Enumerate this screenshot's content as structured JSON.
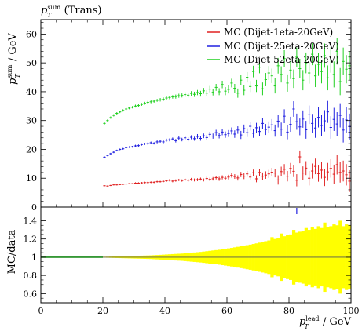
{
  "title": "p_T^sum (Trans)",
  "chart_data": [
    {
      "type": "scatter",
      "panel": "main",
      "ylabel": "p_T^sum / GeV",
      "xlim": [
        0,
        100
      ],
      "ylim": [
        0,
        65
      ],
      "yticks": [
        0,
        10,
        20,
        30,
        40,
        50,
        60
      ],
      "grid": false,
      "legend_position": "top-right",
      "series": [
        {
          "name": "MC (Dijet-1eta-20GeV)",
          "color": "#e02020",
          "x": [
            20.5,
            21.5,
            22.5,
            23.5,
            24.5,
            25.5,
            26.5,
            27.5,
            28.5,
            29.5,
            30.5,
            31.5,
            32.5,
            33.5,
            34.5,
            35.5,
            36.5,
            37.5,
            38.5,
            39.5,
            40.5,
            41.5,
            42.5,
            43.5,
            44.5,
            45.5,
            46.5,
            47.5,
            48.5,
            49.5,
            50.5,
            51.5,
            52.5,
            53.5,
            54.5,
            55.5,
            56.5,
            57.5,
            58.5,
            59.5,
            60.5,
            61.5,
            62.5,
            63.5,
            64.5,
            65.5,
            66.5,
            67.5,
            68.5,
            69.5,
            70.5,
            71.5,
            72.5,
            73.5,
            74.5,
            75.5,
            76.5,
            77.5,
            78.5,
            79.5,
            80.5,
            81.5,
            82.5,
            83.5,
            84.5,
            85.5,
            86.5,
            87.5,
            88.5,
            89.5,
            90.5,
            91.5,
            92.5,
            93.5,
            94.5,
            95.5,
            96.5,
            97.5,
            98.5,
            99.5
          ],
          "y": [
            7.4,
            7.3,
            7.5,
            7.7,
            7.7,
            7.8,
            7.9,
            8.0,
            8.1,
            8.1,
            8.3,
            8.3,
            8.4,
            8.5,
            8.5,
            8.6,
            8.6,
            8.8,
            8.8,
            8.9,
            9.1,
            9.3,
            9.0,
            9.2,
            9.4,
            9.2,
            9.5,
            9.3,
            9.6,
            9.4,
            9.5,
            9.7,
            9.4,
            9.9,
            9.6,
            9.8,
            10.2,
            9.8,
            10.3,
            10.0,
            10.4,
            11.0,
            10.6,
            10.1,
            11.3,
            10.7,
            11.5,
            10.4,
            11.9,
            9.8,
            12.0,
            10.7,
            11.1,
            11.5,
            12.1,
            11.8,
            9.4,
            12.3,
            13.1,
            10.7,
            13.4,
            12.4,
            9.3,
            17.4,
            11.8,
            13.5,
            10.0,
            12.5,
            14.1,
            11.6,
            12.8,
            10.3,
            12.2,
            13.4,
            11.4,
            14.7,
            12.0,
            12.5,
            11.2,
            9.0
          ],
          "yerr": [
            0.2,
            0.2,
            0.2,
            0.2,
            0.2,
            0.2,
            0.2,
            0.2,
            0.2,
            0.2,
            0.3,
            0.3,
            0.3,
            0.3,
            0.3,
            0.3,
            0.3,
            0.3,
            0.3,
            0.3,
            0.4,
            0.4,
            0.4,
            0.4,
            0.4,
            0.4,
            0.4,
            0.5,
            0.5,
            0.5,
            0.5,
            0.5,
            0.5,
            0.6,
            0.6,
            0.6,
            0.6,
            0.7,
            0.7,
            0.7,
            0.8,
            0.8,
            0.8,
            0.9,
            0.9,
            1.0,
            1.0,
            1.1,
            1.1,
            1.2,
            1.2,
            1.3,
            1.3,
            1.4,
            1.5,
            1.5,
            1.6,
            1.7,
            1.8,
            1.8,
            1.9,
            2.0,
            2.1,
            2.2,
            2.3,
            2.4,
            2.5,
            2.6,
            2.7,
            2.8,
            2.9,
            3.0,
            3.1,
            3.2,
            3.3,
            3.4,
            3.5,
            3.6,
            3.7,
            3.8
          ]
        },
        {
          "name": "MC (Dijet-25eta-20GeV)",
          "color": "#2020e0",
          "x": [
            20.5,
            21.5,
            22.5,
            23.5,
            24.5,
            25.5,
            26.5,
            27.5,
            28.5,
            29.5,
            30.5,
            31.5,
            32.5,
            33.5,
            34.5,
            35.5,
            36.5,
            37.5,
            38.5,
            39.5,
            40.5,
            41.5,
            42.5,
            43.5,
            44.5,
            45.5,
            46.5,
            47.5,
            48.5,
            49.5,
            50.5,
            51.5,
            52.5,
            53.5,
            54.5,
            55.5,
            56.5,
            57.5,
            58.5,
            59.5,
            60.5,
            61.5,
            62.5,
            63.5,
            64.5,
            65.5,
            66.5,
            67.5,
            68.5,
            69.5,
            70.5,
            71.5,
            72.5,
            73.5,
            74.5,
            75.5,
            76.5,
            77.5,
            78.5,
            79.5,
            80.5,
            81.5,
            82.5,
            83.5,
            84.5,
            85.5,
            86.5,
            87.5,
            88.5,
            89.5,
            90.5,
            91.5,
            92.5,
            93.5,
            94.5,
            95.5,
            96.5,
            97.5,
            98.5,
            99.5
          ],
          "y": [
            17.3,
            17.9,
            18.5,
            19.0,
            19.6,
            20.0,
            20.2,
            20.6,
            20.8,
            20.9,
            21.2,
            21.3,
            21.7,
            21.9,
            22.0,
            22.3,
            22.1,
            22.6,
            22.8,
            22.6,
            23.2,
            23.3,
            23.6,
            23.0,
            23.9,
            23.4,
            24.0,
            23.5,
            24.2,
            23.7,
            24.5,
            23.8,
            24.7,
            24.1,
            25.2,
            24.6,
            25.8,
            24.8,
            26.0,
            25.1,
            25.5,
            26.4,
            25.3,
            26.7,
            25.0,
            27.2,
            25.8,
            28.0,
            25.6,
            27.5,
            26.2,
            29.0,
            26.9,
            27.7,
            28.5,
            26.5,
            29.8,
            27.0,
            31.5,
            26.0,
            28.7,
            34.0,
            29.6,
            27.8,
            30.5,
            26.8,
            32.0,
            29.0,
            27.4,
            31.1,
            28.3,
            29.9,
            33.0,
            27.6,
            30.4,
            28.8,
            31.8,
            26.7,
            30.2,
            27.9
          ],
          "yerr": [
            0.3,
            0.3,
            0.3,
            0.3,
            0.3,
            0.3,
            0.3,
            0.3,
            0.3,
            0.3,
            0.4,
            0.4,
            0.4,
            0.4,
            0.4,
            0.4,
            0.4,
            0.5,
            0.5,
            0.5,
            0.5,
            0.5,
            0.5,
            0.6,
            0.6,
            0.6,
            0.6,
            0.7,
            0.7,
            0.7,
            0.8,
            0.8,
            0.8,
            0.9,
            0.9,
            0.9,
            1.0,
            1.0,
            1.1,
            1.1,
            1.2,
            1.2,
            1.3,
            1.3,
            1.4,
            1.4,
            1.5,
            1.5,
            1.6,
            1.7,
            1.7,
            1.8,
            1.9,
            2.0,
            2.0,
            2.1,
            2.2,
            2.3,
            2.4,
            2.5,
            2.6,
            2.7,
            2.8,
            2.9,
            3.0,
            3.1,
            3.2,
            3.3,
            3.4,
            3.5,
            3.6,
            3.7,
            3.8,
            3.9,
            4.0,
            4.1,
            4.2,
            4.3,
            4.4,
            4.5
          ]
        },
        {
          "name": "MC (Dijet-52eta-20GeV)",
          "color": "#20d020",
          "x": [
            20.5,
            21.5,
            22.5,
            23.5,
            24.5,
            25.5,
            26.5,
            27.5,
            28.5,
            29.5,
            30.5,
            31.5,
            32.5,
            33.5,
            34.5,
            35.5,
            36.5,
            37.5,
            38.5,
            39.5,
            40.5,
            41.5,
            42.5,
            43.5,
            44.5,
            45.5,
            46.5,
            47.5,
            48.5,
            49.5,
            50.5,
            51.5,
            52.5,
            53.5,
            54.5,
            55.5,
            56.5,
            57.5,
            58.5,
            59.5,
            60.5,
            61.5,
            62.5,
            63.5,
            64.5,
            65.5,
            66.5,
            67.5,
            68.5,
            69.5,
            70.5,
            71.5,
            72.5,
            73.5,
            74.5,
            75.5,
            76.5,
            77.5,
            78.5,
            79.5,
            80.5,
            81.5,
            82.5,
            83.5,
            84.5,
            85.5,
            86.5,
            87.5,
            88.5,
            89.5,
            90.5,
            91.5,
            92.5,
            93.5,
            94.5,
            95.5,
            96.5,
            97.5,
            98.5,
            99.5
          ],
          "y": [
            29.0,
            30.0,
            31.0,
            31.8,
            32.5,
            33.0,
            33.5,
            34.0,
            34.3,
            34.6,
            35.0,
            35.2,
            35.6,
            36.0,
            36.3,
            36.5,
            36.7,
            37.0,
            37.2,
            37.4,
            37.8,
            38.0,
            38.2,
            38.3,
            38.6,
            38.7,
            39.0,
            38.8,
            39.4,
            39.1,
            39.7,
            39.3,
            40.3,
            39.5,
            40.9,
            39.8,
            41.5,
            40.0,
            42.5,
            40.2,
            40.8,
            43.0,
            41.2,
            39.5,
            44.0,
            40.5,
            45.0,
            41.8,
            47.0,
            42.0,
            48.5,
            41.0,
            44.2,
            46.5,
            45.5,
            42.0,
            49.0,
            46.0,
            51.5,
            43.0,
            47.5,
            44.5,
            52.0,
            48.0,
            44.0,
            50.0,
            46.5,
            53.0,
            45.5,
            49.5,
            47.0,
            52.5,
            44.8,
            51.0,
            46.0,
            54.0,
            43.5,
            50.5,
            47.8,
            49.0
          ],
          "yerr": [
            0.4,
            0.4,
            0.4,
            0.4,
            0.4,
            0.4,
            0.4,
            0.4,
            0.4,
            0.4,
            0.5,
            0.5,
            0.5,
            0.5,
            0.5,
            0.5,
            0.5,
            0.5,
            0.6,
            0.6,
            0.6,
            0.6,
            0.6,
            0.7,
            0.7,
            0.7,
            0.8,
            0.8,
            0.8,
            0.9,
            0.9,
            1.0,
            1.0,
            1.0,
            1.1,
            1.1,
            1.2,
            1.2,
            1.3,
            1.4,
            1.4,
            1.5,
            1.5,
            1.6,
            1.7,
            1.7,
            1.8,
            1.9,
            2.0,
            2.1,
            2.1,
            2.2,
            2.3,
            2.4,
            2.5,
            2.6,
            2.7,
            2.8,
            2.9,
            3.0,
            3.1,
            3.2,
            3.3,
            3.4,
            3.5,
            3.6,
            3.7,
            3.8,
            3.9,
            4.0,
            4.1,
            4.2,
            4.3,
            4.4,
            4.5,
            4.6,
            4.7,
            4.8,
            4.9,
            5.0
          ]
        }
      ]
    },
    {
      "type": "area",
      "panel": "ratio",
      "ylabel": "MC/data",
      "xlabel": "p_T^lead / GeV",
      "xlim": [
        0,
        100
      ],
      "ylim": [
        0.5,
        1.55
      ],
      "yticks": [
        0.6,
        0.8,
        1.0,
        1.2,
        1.4
      ],
      "xticks": [
        0,
        20,
        40,
        60,
        80,
        100
      ],
      "reference_line": 1.0,
      "band_color": "#ffff00",
      "band_x": [
        20.5,
        21.5,
        22.5,
        23.5,
        24.5,
        25.5,
        26.5,
        27.5,
        28.5,
        29.5,
        30.5,
        31.5,
        32.5,
        33.5,
        34.5,
        35.5,
        36.5,
        37.5,
        38.5,
        39.5,
        40.5,
        41.5,
        42.5,
        43.5,
        44.5,
        45.5,
        46.5,
        47.5,
        48.5,
        49.5,
        50.5,
        51.5,
        52.5,
        53.5,
        54.5,
        55.5,
        56.5,
        57.5,
        58.5,
        59.5,
        60.5,
        61.5,
        62.5,
        63.5,
        64.5,
        65.5,
        66.5,
        67.5,
        68.5,
        69.5,
        70.5,
        71.5,
        72.5,
        73.5,
        74.5,
        75.5,
        76.5,
        77.5,
        78.5,
        79.5,
        80.5,
        81.5,
        82.5,
        83.5,
        84.5,
        85.5,
        86.5,
        87.5,
        88.5,
        89.5,
        90.5,
        91.5,
        92.5,
        93.5,
        94.5,
        95.5,
        96.5,
        97.5,
        98.5,
        99.5
      ],
      "band_halfwidth": [
        0.005,
        0.006,
        0.007,
        0.008,
        0.009,
        0.01,
        0.011,
        0.012,
        0.013,
        0.014,
        0.015,
        0.016,
        0.017,
        0.018,
        0.019,
        0.02,
        0.022,
        0.024,
        0.026,
        0.028,
        0.03,
        0.032,
        0.034,
        0.036,
        0.038,
        0.04,
        0.043,
        0.046,
        0.049,
        0.052,
        0.055,
        0.058,
        0.062,
        0.066,
        0.07,
        0.074,
        0.078,
        0.082,
        0.087,
        0.092,
        0.097,
        0.102,
        0.108,
        0.114,
        0.12,
        0.126,
        0.132,
        0.138,
        0.145,
        0.152,
        0.16,
        0.168,
        0.176,
        0.184,
        0.22,
        0.2,
        0.21,
        0.26,
        0.23,
        0.24,
        0.25,
        0.3,
        0.27,
        0.28,
        0.29,
        0.32,
        0.3,
        0.33,
        0.31,
        0.34,
        0.32,
        0.38,
        0.33,
        0.34,
        0.36,
        0.35,
        0.4,
        0.34,
        0.36,
        0.35
      ],
      "series": [
        {
          "name": "MC (Dijet-1eta-20GeV)",
          "color": "#e02020",
          "value": 1.0
        },
        {
          "name": "MC (Dijet-25eta-20GeV)",
          "color": "#2020e0",
          "value": 1.0
        },
        {
          "name": "MC (Dijet-52eta-20GeV)",
          "color": "#20d020",
          "value": 1.0
        }
      ],
      "outlier": {
        "x": 82.5,
        "y": 1.5,
        "color": "#2020e0"
      }
    }
  ],
  "labels": {
    "xtick_labels": [
      "0",
      "20",
      "40",
      "60",
      "80",
      "100"
    ],
    "main_ytick_labels": [
      "0",
      "10",
      "20",
      "30",
      "40",
      "50",
      "60"
    ],
    "ratio_ytick_labels": [
      "0.6",
      "0.8",
      "1",
      "1.2",
      "1.4"
    ]
  }
}
